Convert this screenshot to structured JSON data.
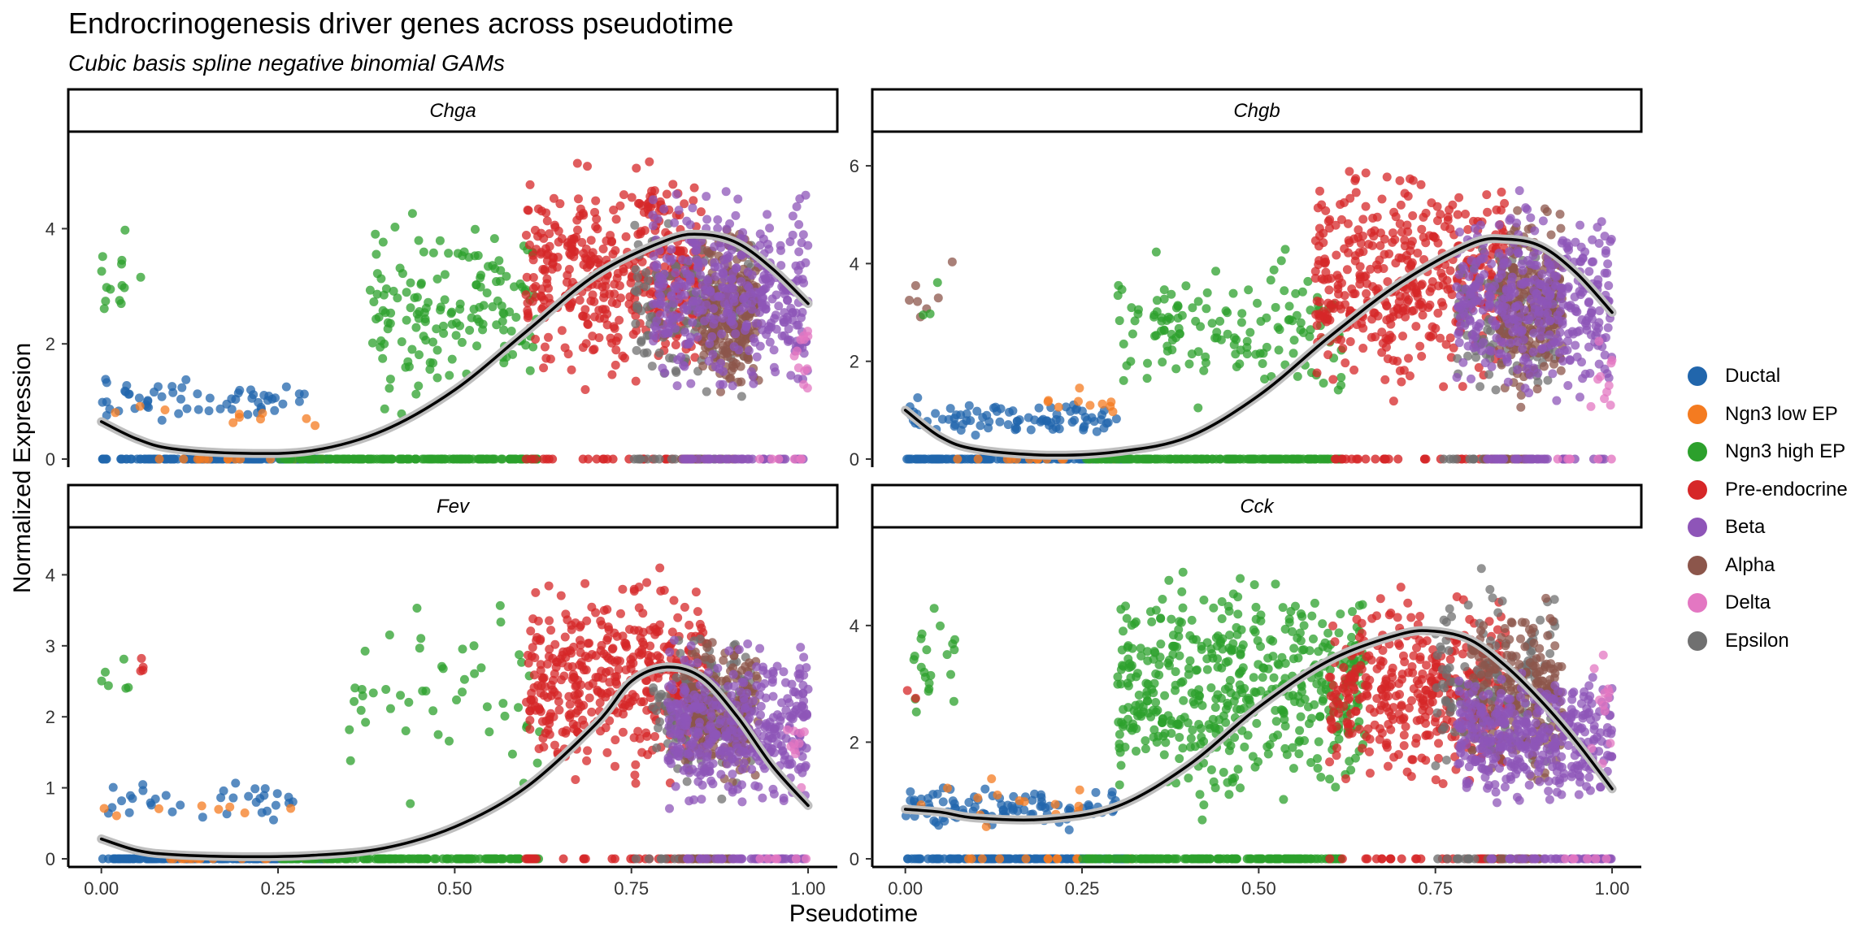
{
  "title": "Endrocrinogenesis driver genes across pseudotime",
  "subtitle": "Cubic basis spline negative binomial GAMs",
  "ylabel": "Normalized Expression",
  "xlabel": "Pseudotime",
  "legend": [
    {
      "label": "Ductal",
      "color": "#2166ac"
    },
    {
      "label": "Ngn3 low EP",
      "color": "#f47b20"
    },
    {
      "label": "Ngn3 high EP",
      "color": "#2ca02c"
    },
    {
      "label": "Pre-endocrine",
      "color": "#d62728"
    },
    {
      "label": "Beta",
      "color": "#8e55b8"
    },
    {
      "label": "Alpha",
      "color": "#8c564b"
    },
    {
      "label": "Delta",
      "color": "#e377c2"
    },
    {
      "label": "Epsilon",
      "color": "#707070"
    }
  ],
  "chart_data": [
    {
      "type": "scatter",
      "panel": "Chga",
      "x_ticks": [
        "0.00",
        "0.25",
        "0.50",
        "0.75",
        "1.00"
      ],
      "y_ticks": [
        "0",
        "2",
        "4"
      ],
      "xlim": [
        0,
        1
      ],
      "ylim": [
        0,
        5.6
      ],
      "fit_curve": [
        [
          0.0,
          0.65
        ],
        [
          0.05,
          0.35
        ],
        [
          0.1,
          0.18
        ],
        [
          0.2,
          0.1
        ],
        [
          0.3,
          0.15
        ],
        [
          0.4,
          0.5
        ],
        [
          0.5,
          1.2
        ],
        [
          0.6,
          2.2
        ],
        [
          0.7,
          3.2
        ],
        [
          0.8,
          3.8
        ],
        [
          0.85,
          3.9
        ],
        [
          0.9,
          3.75
        ],
        [
          0.95,
          3.3
        ],
        [
          1.0,
          2.7
        ]
      ],
      "clusters": [
        {
          "cell_type": "Ngn3 high EP",
          "x": [
            0.0,
            0.06
          ],
          "y": [
            1.7,
            4.1
          ],
          "n": 14
        },
        {
          "cell_type": "Ductal",
          "x": [
            0.0,
            0.29
          ],
          "y": [
            0.5,
            1.5
          ],
          "n": 60
        },
        {
          "cell_type": "Ngn3 low EP",
          "x": [
            0.0,
            0.33
          ],
          "y": [
            0.5,
            1.1
          ],
          "n": 10
        },
        {
          "cell_type": "Ngn3 high EP",
          "x": [
            0.38,
            0.62
          ],
          "y": [
            0.6,
            4.6
          ],
          "n": 160
        },
        {
          "cell_type": "Pre-endocrine",
          "x": [
            0.6,
            0.85
          ],
          "y": [
            0.9,
            5.5
          ],
          "n": 420
        },
        {
          "cell_type": "Epsilon",
          "x": [
            0.75,
            0.92
          ],
          "y": [
            0.8,
            4.4
          ],
          "n": 150
        },
        {
          "cell_type": "Alpha",
          "x": [
            0.85,
            0.93
          ],
          "y": [
            0.9,
            4.3
          ],
          "n": 230
        },
        {
          "cell_type": "Beta",
          "x": [
            0.78,
            1.0
          ],
          "y": [
            0.8,
            5.0
          ],
          "n": 380
        },
        {
          "cell_type": "Delta",
          "x": [
            0.98,
            1.0
          ],
          "y": [
            0.8,
            2.5
          ],
          "n": 12
        }
      ]
    },
    {
      "type": "scatter",
      "panel": "Chgb",
      "x_ticks": [
        "0.00",
        "0.25",
        "0.50",
        "0.75",
        "1.00"
      ],
      "y_ticks": [
        "0",
        "2",
        "4",
        "6"
      ],
      "xlim": [
        0,
        1
      ],
      "ylim": [
        0,
        6.6
      ],
      "fit_curve": [
        [
          0.0,
          1.0
        ],
        [
          0.05,
          0.45
        ],
        [
          0.1,
          0.2
        ],
        [
          0.2,
          0.08
        ],
        [
          0.3,
          0.15
        ],
        [
          0.4,
          0.45
        ],
        [
          0.5,
          1.3
        ],
        [
          0.6,
          2.5
        ],
        [
          0.7,
          3.6
        ],
        [
          0.8,
          4.4
        ],
        [
          0.85,
          4.5
        ],
        [
          0.9,
          4.35
        ],
        [
          0.95,
          3.8
        ],
        [
          1.0,
          3.0
        ]
      ],
      "clusters": [
        {
          "cell_type": "Alpha",
          "x": [
            0.0,
            0.07
          ],
          "y": [
            2.4,
            4.4
          ],
          "n": 7
        },
        {
          "cell_type": "Ngn3 high EP",
          "x": [
            0.02,
            0.05
          ],
          "y": [
            2.7,
            4.0
          ],
          "n": 3
        },
        {
          "cell_type": "Ductal",
          "x": [
            0.0,
            0.3
          ],
          "y": [
            0.4,
            1.3
          ],
          "n": 90
        },
        {
          "cell_type": "Ngn3 low EP",
          "x": [
            0.2,
            0.3
          ],
          "y": [
            0.6,
            1.8
          ],
          "n": 10
        },
        {
          "cell_type": "Ngn3 high EP",
          "x": [
            0.3,
            0.62
          ],
          "y": [
            0.7,
            4.5
          ],
          "n": 150
        },
        {
          "cell_type": "Pre-endocrine",
          "x": [
            0.58,
            0.85
          ],
          "y": [
            0.9,
            6.4
          ],
          "n": 420
        },
        {
          "cell_type": "Epsilon",
          "x": [
            0.78,
            0.92
          ],
          "y": [
            0.8,
            5.0
          ],
          "n": 140
        },
        {
          "cell_type": "Alpha",
          "x": [
            0.84,
            0.93
          ],
          "y": [
            0.9,
            5.6
          ],
          "n": 220
        },
        {
          "cell_type": "Beta",
          "x": [
            0.78,
            1.0
          ],
          "y": [
            0.7,
            5.8
          ],
          "n": 380
        },
        {
          "cell_type": "Delta",
          "x": [
            0.97,
            1.0
          ],
          "y": [
            0.8,
            2.5
          ],
          "n": 10
        }
      ]
    },
    {
      "type": "scatter",
      "panel": "Fev",
      "x_ticks": [
        "0.00",
        "0.25",
        "0.50",
        "0.75",
        "1.00"
      ],
      "y_ticks": [
        "0",
        "1",
        "2",
        "3",
        "4"
      ],
      "xlim": [
        0,
        1
      ],
      "ylim": [
        0,
        4.6
      ],
      "fit_curve": [
        [
          0.0,
          0.28
        ],
        [
          0.05,
          0.12
        ],
        [
          0.1,
          0.06
        ],
        [
          0.2,
          0.03
        ],
        [
          0.3,
          0.05
        ],
        [
          0.4,
          0.15
        ],
        [
          0.5,
          0.45
        ],
        [
          0.6,
          1.0
        ],
        [
          0.7,
          1.9
        ],
        [
          0.75,
          2.5
        ],
        [
          0.8,
          2.7
        ],
        [
          0.85,
          2.55
        ],
        [
          0.9,
          2.0
        ],
        [
          0.95,
          1.3
        ],
        [
          1.0,
          0.75
        ]
      ],
      "clusters": [
        {
          "cell_type": "Ngn3 high EP",
          "x": [
            0.0,
            0.04
          ],
          "y": [
            1.5,
            3.4
          ],
          "n": 6
        },
        {
          "cell_type": "Pre-endocrine",
          "x": [
            0.05,
            0.06
          ],
          "y": [
            2.4,
            2.95
          ],
          "n": 4
        },
        {
          "cell_type": "Ductal",
          "x": [
            0.0,
            0.29
          ],
          "y": [
            0.45,
            1.2
          ],
          "n": 35
        },
        {
          "cell_type": "Ngn3 low EP",
          "x": [
            0.0,
            0.27
          ],
          "y": [
            0.5,
            0.9
          ],
          "n": 8
        },
        {
          "cell_type": "Ngn3 high EP",
          "x": [
            0.35,
            0.62
          ],
          "y": [
            0.7,
            3.8
          ],
          "n": 50
        },
        {
          "cell_type": "Pre-endocrine",
          "x": [
            0.6,
            0.86
          ],
          "y": [
            0.8,
            4.3
          ],
          "n": 420
        },
        {
          "cell_type": "Epsilon",
          "x": [
            0.78,
            0.92
          ],
          "y": [
            0.7,
            3.6
          ],
          "n": 150
        },
        {
          "cell_type": "Alpha",
          "x": [
            0.82,
            0.93
          ],
          "y": [
            0.8,
            3.4
          ],
          "n": 200
        },
        {
          "cell_type": "Beta",
          "x": [
            0.8,
            1.0
          ],
          "y": [
            0.5,
            3.3
          ],
          "n": 380
        },
        {
          "cell_type": "Delta",
          "x": [
            0.97,
            1.0
          ],
          "y": [
            0.6,
            2.4
          ],
          "n": 10
        }
      ]
    },
    {
      "type": "scatter",
      "panel": "Cck",
      "x_ticks": [
        "0.00",
        "0.25",
        "0.50",
        "0.75",
        "1.00"
      ],
      "y_ticks": [
        "0",
        "2",
        "4"
      ],
      "xlim": [
        0,
        1
      ],
      "ylim": [
        0,
        5.6
      ],
      "fit_curve": [
        [
          0.0,
          0.85
        ],
        [
          0.05,
          0.8
        ],
        [
          0.1,
          0.7
        ],
        [
          0.2,
          0.68
        ],
        [
          0.3,
          0.9
        ],
        [
          0.4,
          1.6
        ],
        [
          0.5,
          2.6
        ],
        [
          0.6,
          3.4
        ],
        [
          0.7,
          3.85
        ],
        [
          0.75,
          3.9
        ],
        [
          0.8,
          3.75
        ],
        [
          0.85,
          3.3
        ],
        [
          0.9,
          2.7
        ],
        [
          0.95,
          2.0
        ],
        [
          1.0,
          1.2
        ]
      ],
      "clusters": [
        {
          "cell_type": "Ngn3 high EP",
          "x": [
            0.01,
            0.07
          ],
          "y": [
            2.2,
            4.6
          ],
          "n": 22
        },
        {
          "cell_type": "Pre-endocrine",
          "x": [
            0.0,
            0.04
          ],
          "y": [
            2.7,
            3.1
          ],
          "n": 2
        },
        {
          "cell_type": "Ductal",
          "x": [
            0.0,
            0.3
          ],
          "y": [
            0.4,
            1.3
          ],
          "n": 100
        },
        {
          "cell_type": "Ngn3 low EP",
          "x": [
            0.02,
            0.25
          ],
          "y": [
            0.5,
            1.5
          ],
          "n": 14
        },
        {
          "cell_type": "Ngn3 high EP",
          "x": [
            0.3,
            0.65
          ],
          "y": [
            0.5,
            5.4
          ],
          "n": 500
        },
        {
          "cell_type": "Pre-endocrine",
          "x": [
            0.6,
            0.85
          ],
          "y": [
            0.9,
            4.9
          ],
          "n": 380
        },
        {
          "cell_type": "Epsilon",
          "x": [
            0.75,
            0.92
          ],
          "y": [
            0.9,
            5.2
          ],
          "n": 150
        },
        {
          "cell_type": "Alpha",
          "x": [
            0.8,
            0.93
          ],
          "y": [
            0.9,
            4.8
          ],
          "n": 200
        },
        {
          "cell_type": "Beta",
          "x": [
            0.78,
            1.0
          ],
          "y": [
            0.7,
            3.5
          ],
          "n": 380
        },
        {
          "cell_type": "Delta",
          "x": [
            0.97,
            1.0
          ],
          "y": [
            0.8,
            4.2
          ],
          "n": 12
        }
      ]
    }
  ]
}
